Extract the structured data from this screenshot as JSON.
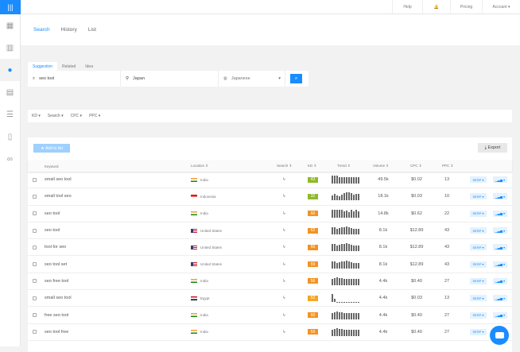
{
  "topbar": {
    "help": "Help",
    "pricing": "Pricing",
    "account": "Account ▾"
  },
  "nav": {
    "tabs": [
      "Search",
      "History",
      "List"
    ]
  },
  "search": {
    "tabs": [
      "Suggestion",
      "Related",
      "Idea"
    ],
    "keyword": "seo tool",
    "location": "Japan",
    "language": "Japanese"
  },
  "filters": [
    "KD ▾",
    "Search ▾",
    "CPC ▾",
    "PPC ▾"
  ],
  "actions": {
    "add_to_list": "Add to list",
    "export": "Export"
  },
  "table": {
    "headers": {
      "keyword": "Keyword",
      "location": "Location ⇕",
      "search": "Search ⇕",
      "kd": "KD ⇕",
      "trend": "Trend ⇕",
      "volume": "Volume ⇕",
      "cpc": "CPC ⇕",
      "ppc": "PPC ⇕"
    },
    "serp_label": "SERP ▾",
    "chart_label": "▁▃▅ ▾",
    "kd_colors": {
      "green": "#8fba2b",
      "orange": "#f39323",
      "yellow": "#f5a623"
    },
    "rows": [
      {
        "keyword": "small seo tool",
        "country": "India",
        "flag": "in",
        "kd": "43",
        "kd_color": "#8fba2b",
        "volume": "49.5k",
        "cpc": "$0.02",
        "ppc": "13",
        "trend": [
          1,
          1,
          1,
          0.8,
          0.8,
          0.8,
          0.8,
          0.8,
          0.8,
          0.8,
          0.8,
          0.8
        ]
      },
      {
        "keyword": "small tool seo",
        "country": "Indonesia",
        "flag": "id",
        "kd": "32",
        "kd_color": "#8fba2b",
        "volume": "18.1k",
        "cpc": "$0.03",
        "ppc": "10",
        "trend": [
          0.6,
          0.8,
          0.6,
          0.5,
          0.7,
          0.9,
          1,
          1,
          0.9,
          0.7,
          0.8,
          0.8
        ]
      },
      {
        "keyword": "seo tool",
        "country": "India",
        "flag": "in",
        "kd": "60",
        "kd_color": "#f39323",
        "volume": "14.8k",
        "cpc": "$0.62",
        "ppc": "22",
        "trend": [
          1,
          1,
          1,
          1,
          1,
          0.8,
          0.9,
          0.7,
          1,
          0.8,
          1,
          0.8
        ]
      },
      {
        "keyword": "seo tool",
        "country": "United States",
        "flag": "us",
        "kd": "62",
        "kd_color": "#f39323",
        "volume": "8.1k",
        "cpc": "$12.89",
        "ppc": "43",
        "trend": [
          0.9,
          0.9,
          0.7,
          0.8,
          0.9,
          0.9,
          1,
          0.9,
          0.8,
          0.7,
          0.7,
          0.7
        ]
      },
      {
        "keyword": "tool for seo",
        "country": "United States",
        "flag": "us",
        "kd": "66",
        "kd_color": "#f39323",
        "volume": "8.1k",
        "cpc": "$12.89",
        "ppc": "43",
        "trend": [
          0.9,
          0.9,
          0.7,
          0.8,
          0.9,
          0.9,
          1,
          0.9,
          0.8,
          0.7,
          0.7,
          0.7
        ]
      },
      {
        "keyword": "seo tool set",
        "country": "United States",
        "flag": "us",
        "kd": "59",
        "kd_color": "#f39323",
        "volume": "8.1k",
        "cpc": "$12.89",
        "ppc": "43",
        "trend": [
          0.9,
          0.9,
          0.7,
          0.8,
          0.9,
          0.9,
          1,
          0.9,
          0.8,
          0.7,
          0.7,
          0.7
        ]
      },
      {
        "keyword": "seo free tool",
        "country": "India",
        "flag": "in",
        "kd": "56",
        "kd_color": "#f39323",
        "volume": "4.4k",
        "cpc": "$0.40",
        "ppc": "27",
        "trend": [
          0.8,
          0.9,
          1,
          0.9,
          0.9,
          0.8,
          0.8,
          0.8,
          0.8,
          0.8,
          0.8,
          0.8
        ]
      },
      {
        "keyword": "small seo tool",
        "country": "Egypt",
        "flag": "eg",
        "kd": "52",
        "kd_color": "#f5a623",
        "volume": "4.4k",
        "cpc": "$0.03",
        "ppc": "13",
        "trend": [
          1,
          0.4,
          0.05,
          0.05,
          0.05,
          0.05,
          0.05,
          0.05,
          0.05,
          0.05,
          0.05,
          0.05
        ]
      },
      {
        "keyword": "free seo tool",
        "country": "India",
        "flag": "in",
        "kd": "60",
        "kd_color": "#f39323",
        "volume": "4.4k",
        "cpc": "$0.40",
        "ppc": "27",
        "trend": [
          0.8,
          0.9,
          1,
          0.9,
          0.9,
          0.8,
          0.8,
          0.8,
          0.8,
          0.8,
          0.8,
          0.8
        ]
      },
      {
        "keyword": "seo tool free",
        "country": "India",
        "flag": "in",
        "kd": "59",
        "kd_color": "#f39323",
        "volume": "4.4k",
        "cpc": "$0.40",
        "ppc": "27",
        "trend": [
          0.8,
          0.9,
          1,
          0.9,
          0.9,
          0.8,
          0.8,
          0.8,
          0.8,
          0.8,
          0.8,
          0.8
        ]
      }
    ]
  },
  "accent": "#1a8cff"
}
